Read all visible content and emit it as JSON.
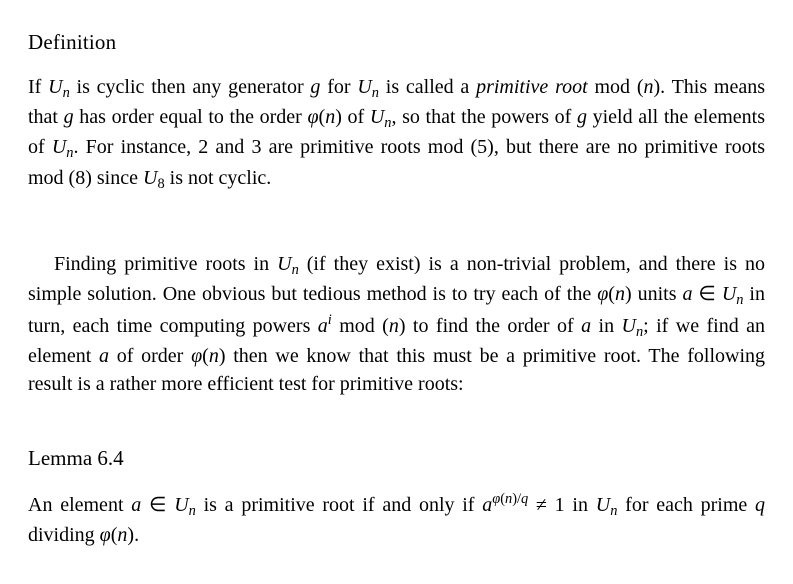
{
  "typography": {
    "font_family": "Times New Roman",
    "heading_fontsize_pt": 16,
    "body_fontsize_pt": 15,
    "line_height": 1.4,
    "text_align": "justify",
    "text_color": "#000000",
    "background_color": "#ffffff"
  },
  "headings": {
    "definition": "Definition",
    "lemma": "Lemma 6.4"
  },
  "math": {
    "Un": "Uₙ",
    "U8": "U₈",
    "g": "g",
    "a": "a",
    "phi_n": "φ(n)",
    "element_of": "∈",
    "neq": "≠",
    "a_sup_i": "aⁱ",
    "a_sup_phi_n_over_q": "a^{φ(n)/q}",
    "q": "q"
  },
  "sections": {
    "definition_paragraph_plain": "If Uₙ is cyclic then any generator g for Uₙ is called a primitive root mod (n). This means that g has order equal to the order φ(n) of Uₙ, so that the powers of g yield all the elements of Uₙ. For instance, 2 and 3 are primitive roots mod (5), but there are no primitive roots mod (8) since U₈ is not cyclic.",
    "middle_paragraph_plain": "Finding primitive roots in Uₙ (if they exist) is a non-trivial problem, and there is no simple solution. One obvious but tedious method is to try each of the φ(n) units a ∈ Uₙ in turn, each time computing powers aⁱ mod (n) to find the order of a in Uₙ; if we find an element a of order φ(n) then we know that this must be a primitive root. The following result is a rather more efficient test for primitive roots:",
    "lemma_paragraph_plain": "An element a ∈ Uₙ is a primitive root if and only if a^{φ(n)/q} ≠ 1 in Uₙ for each prime q dividing φ(n)."
  }
}
